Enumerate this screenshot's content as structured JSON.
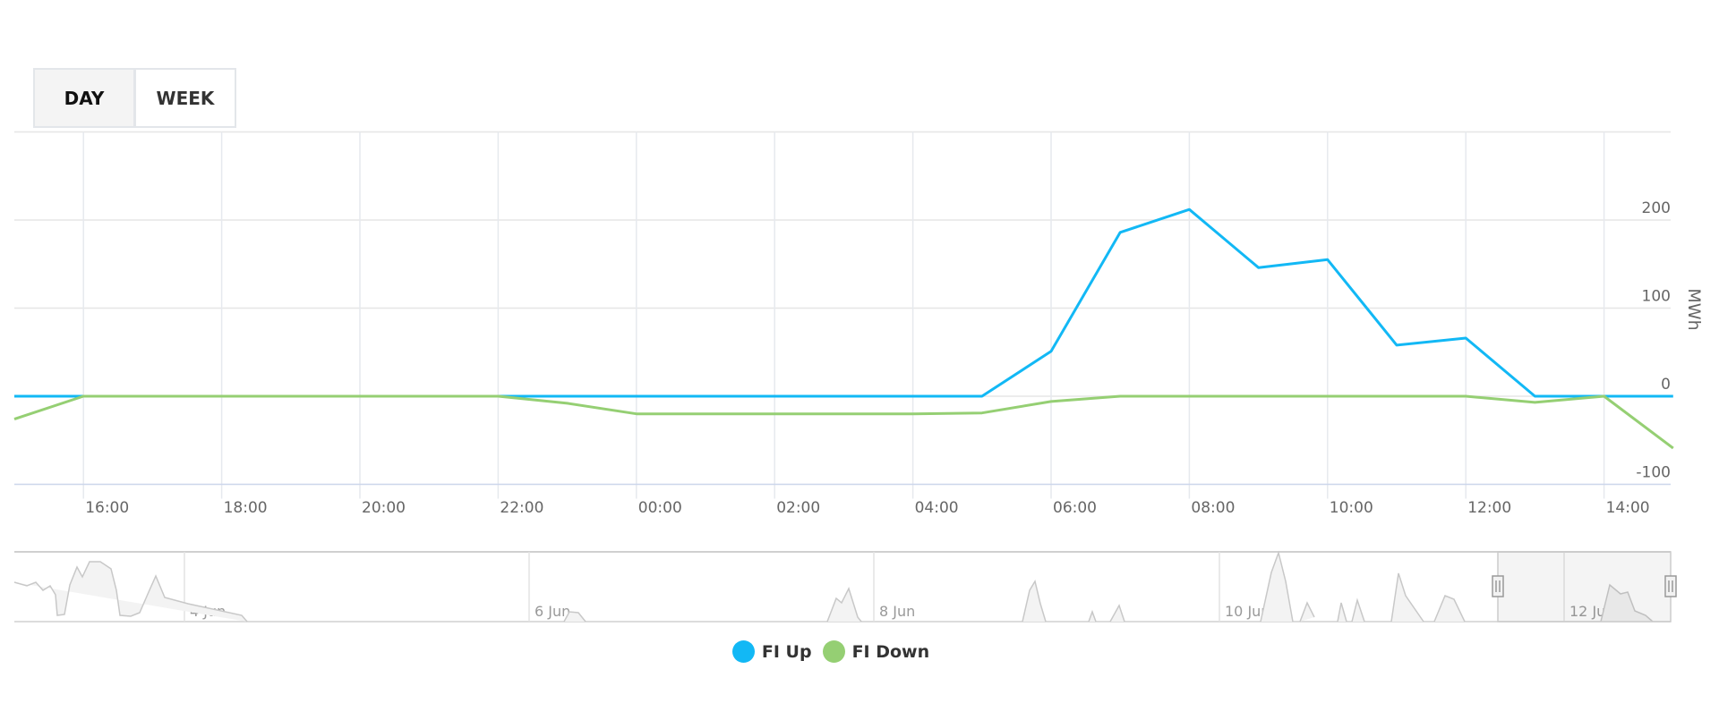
{
  "range_selector": {
    "buttons": [
      {
        "label": "DAY",
        "active": true
      },
      {
        "label": "WEEK",
        "active": false
      }
    ]
  },
  "legend": {
    "items": [
      {
        "label": "FI Up",
        "color": "#12b8f5"
      },
      {
        "label": "FI Down",
        "color": "#95cf73"
      }
    ]
  },
  "navigator": {
    "labels": [
      "4 Jun",
      "6 Jun",
      "8 Jun",
      "10 Jun",
      "12 Jun"
    ]
  },
  "chart_data": {
    "type": "line",
    "title": "",
    "xlabel": "",
    "ylabel": "MWh",
    "ylim": [
      -100,
      300
    ],
    "yticks": [
      -100,
      0,
      100,
      200
    ],
    "grid": true,
    "legend_position": "bottom-center",
    "x": [
      "15:00",
      "16:00",
      "17:00",
      "18:00",
      "19:00",
      "20:00",
      "21:00",
      "22:00",
      "23:00",
      "00:00",
      "01:00",
      "02:00",
      "03:00",
      "04:00",
      "05:00",
      "06:00",
      "07:00",
      "08:00",
      "09:00",
      "10:00",
      "11:00",
      "12:00",
      "13:00",
      "14:00",
      "15:00"
    ],
    "xtick_labels": [
      "16:00",
      "18:00",
      "20:00",
      "22:00",
      "00:00",
      "02:00",
      "04:00",
      "06:00",
      "08:00",
      "10:00",
      "12:00",
      "14:00"
    ],
    "series": [
      {
        "name": "FI Up",
        "color": "#12b8f5",
        "values": [
          0,
          0,
          0,
          0,
          0,
          0,
          0,
          0,
          0,
          0,
          0,
          0,
          0,
          0,
          0,
          51,
          186,
          212,
          146,
          155,
          58,
          66,
          0,
          0,
          0
        ]
      },
      {
        "name": "FI Down",
        "color": "#95cf73",
        "values": [
          -26,
          0,
          0,
          0,
          0,
          0,
          0,
          0,
          -8,
          -20,
          -20,
          -20,
          -20,
          -20,
          -19,
          -6,
          0,
          0,
          0,
          0,
          0,
          0,
          -7,
          0,
          -59
        ]
      }
    ]
  }
}
